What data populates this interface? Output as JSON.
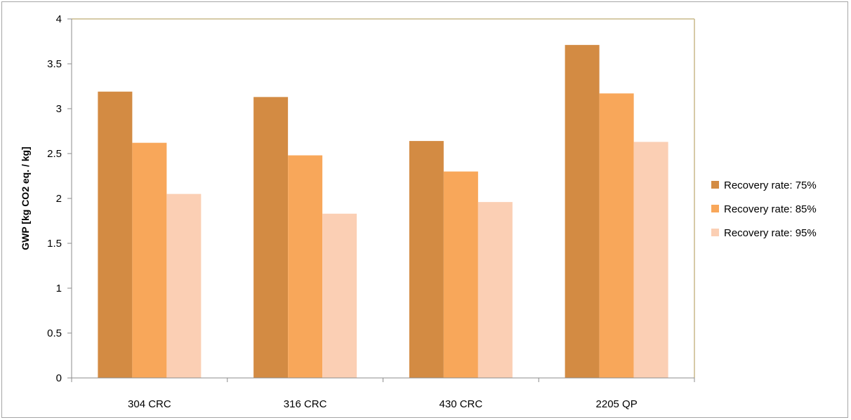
{
  "chart_data": {
    "type": "bar",
    "title": "",
    "xlabel": "",
    "ylabel": "GWP  [kg CO2 eq. / kg]",
    "categories": [
      "304 CRC",
      "316 CRC",
      "430 CRC",
      "2205 QP"
    ],
    "series": [
      {
        "name": "Recovery rate: 75%",
        "values": [
          3.19,
          3.13,
          2.64,
          3.71
        ],
        "color": "#d38b43"
      },
      {
        "name": "Recovery rate: 85%",
        "values": [
          2.62,
          2.48,
          2.3,
          3.17
        ],
        "color": "#f8a75a"
      },
      {
        "name": "Recovery rate: 95%",
        "values": [
          2.05,
          1.83,
          1.96,
          2.63
        ],
        "color": "#fbcfb4"
      }
    ],
    "ylim": [
      0,
      4
    ],
    "yticks": [
      "0",
      "0.5",
      "1",
      "1.5",
      "2",
      "2.5",
      "3",
      "3.5",
      "4"
    ],
    "grid": false,
    "legend_position": "right",
    "plot_border_color": "#c8b88a"
  }
}
